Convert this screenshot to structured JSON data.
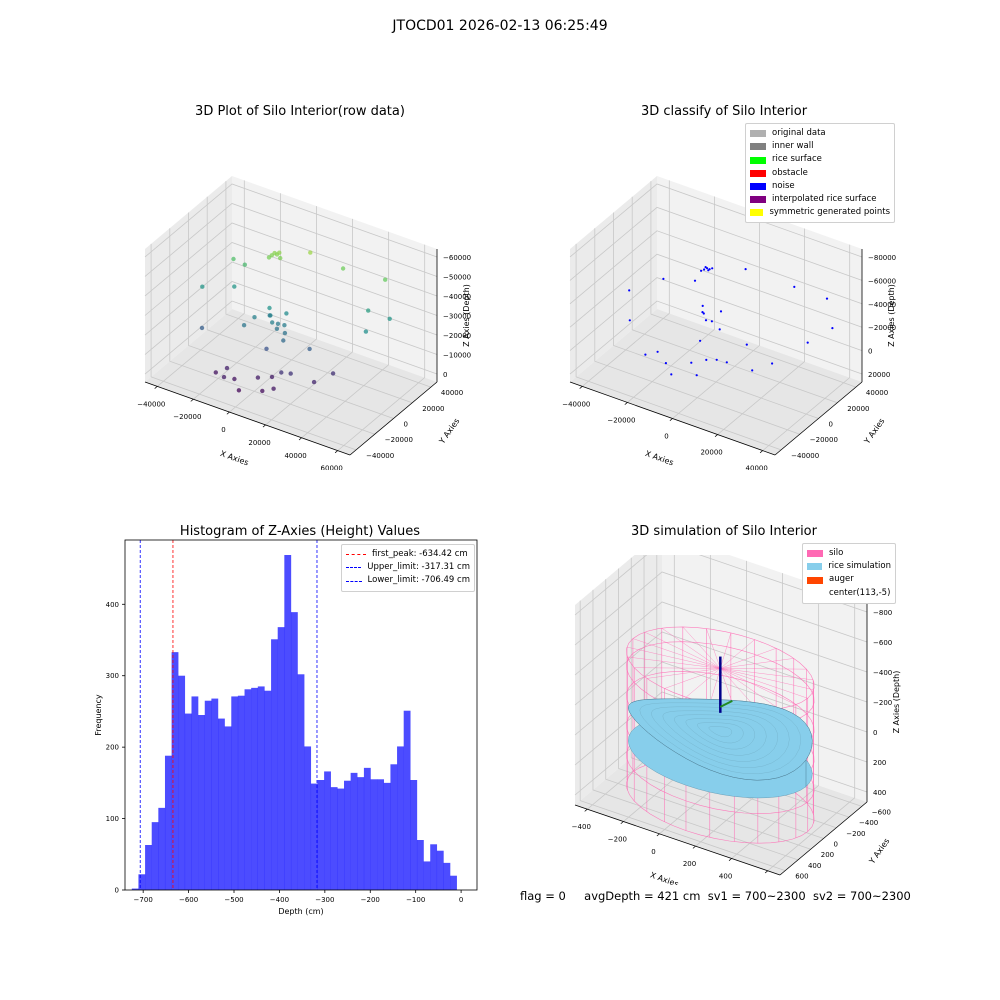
{
  "figure": {
    "title": "JTOCD01 2026-02-13 06:25:49"
  },
  "panels": {
    "raw": {
      "title": "3D Plot of Silo Interior(row data)"
    },
    "classify": {
      "title": "3D classify of Silo Interior"
    },
    "histogram": {
      "title": "Histogram of Z-Axies (Height) Values"
    },
    "simulation": {
      "title": "3D simulation of Silo Interior"
    }
  },
  "footer": {
    "flag": "flag = 0",
    "avg": "avgDepth = 421 cm",
    "sv1": "sv1 = 700~2300",
    "sv2": "sv2 = 700~2300"
  },
  "colors": {
    "bar": "#0000ff",
    "bar_alpha": 0.7,
    "first_peak": "#ff0000",
    "limits": "#0000ff",
    "silo": "#ff69b4",
    "rice": "#87ceeb",
    "auger": "#ff4500"
  },
  "chart_data": [
    {
      "type": "scatter3d",
      "title": "3D Plot of Silo Interior(row data)",
      "xlabel": "X Axies",
      "ylabel": "Y Axies",
      "zlabel": "Z Axies (Depth)",
      "xticks": [
        "−40000",
        "−20000",
        "0",
        "20000",
        "40000",
        "60000"
      ],
      "yticks": [
        "−40000",
        "−20000",
        "0",
        "20000",
        "40000"
      ],
      "zticks": [
        "0",
        "−10000",
        "−20000",
        "−30000",
        "−40000",
        "−50000",
        "−60000"
      ],
      "xlim": [
        -50000,
        60000
      ],
      "ylim": [
        -45000,
        45000
      ],
      "zlim": [
        -65000,
        2000
      ],
      "colormap": "viridis",
      "points": [
        {
          "x": -10000,
          "y": 12000,
          "z": -10000
        },
        {
          "x": -9000,
          "y": 12500,
          "z": -10500
        },
        {
          "x": -11000,
          "y": 11000,
          "z": -11000
        },
        {
          "x": -8000,
          "y": 13000,
          "z": -9500
        },
        {
          "x": -12000,
          "y": 10000,
          "z": -12000
        },
        {
          "x": -7000,
          "y": 12000,
          "z": -11500
        },
        {
          "x": 5000,
          "y": 20000,
          "z": -8000
        },
        {
          "x": 20000,
          "y": 25000,
          "z": -13000
        },
        {
          "x": 40000,
          "y": 30000,
          "z": -14000
        },
        {
          "x": -25000,
          "y": 10000,
          "z": -20000
        },
        {
          "x": -30000,
          "y": 8000,
          "z": -18000
        },
        {
          "x": -40000,
          "y": -5000,
          "z": -30000
        },
        {
          "x": 45000,
          "y": 25000,
          "z": -30000
        },
        {
          "x": 40000,
          "y": 10000,
          "z": -32000
        },
        {
          "x": 35000,
          "y": 22000,
          "z": -28000
        },
        {
          "x": -35000,
          "y": -15000,
          "z": -45000
        },
        {
          "x": -28000,
          "y": 5000,
          "z": -30000
        },
        {
          "x": -5000,
          "y": -2000,
          "z": -34000
        },
        {
          "x": -3000,
          "y": -4000,
          "z": -36000
        },
        {
          "x": -2000,
          "y": 0,
          "z": -38000
        },
        {
          "x": -1000,
          "y": -3000,
          "z": -39000
        },
        {
          "x": 2000,
          "y": -1000,
          "z": -37000
        },
        {
          "x": 3000,
          "y": -2500,
          "z": -40000
        },
        {
          "x": -8000,
          "y": 3000,
          "z": -37000
        },
        {
          "x": 1000,
          "y": 3000,
          "z": -33000
        },
        {
          "x": -15000,
          "y": -10000,
          "z": -39000
        },
        {
          "x": 4000,
          "y": -6000,
          "z": -42000
        },
        {
          "x": -4000,
          "y": -8000,
          "z": -48000
        },
        {
          "x": 6000,
          "y": -12000,
          "z": -55000
        },
        {
          "x": 0,
          "y": -10000,
          "z": -60000
        },
        {
          "x": -5000,
          "y": -15000,
          "z": -60000
        },
        {
          "x": -15000,
          "y": -20000,
          "z": -62000
        },
        {
          "x": -20000,
          "y": -18000,
          "z": -59000
        },
        {
          "x": -10000,
          "y": -25000,
          "z": -64000
        },
        {
          "x": 0,
          "y": -20000,
          "z": -63000
        },
        {
          "x": -18000,
          "y": -25000,
          "z": -60000
        },
        {
          "x": 10000,
          "y": -10000,
          "z": -55000
        },
        {
          "x": 20000,
          "y": -5000,
          "z": -58000
        },
        {
          "x": 25000,
          "y": 5000,
          "z": -56000
        },
        {
          "x": 5000,
          "y": -18000,
          "z": -61000
        },
        {
          "x": -25000,
          "y": -20000,
          "z": -62000
        },
        {
          "x": 15000,
          "y": 0,
          "z": -45000
        },
        {
          "x": -12000,
          "y": -5000,
          "z": -36000
        },
        {
          "x": -6000,
          "y": -1000,
          "z": -31000
        }
      ]
    },
    {
      "type": "scatter3d",
      "title": "3D classify of Silo Interior",
      "xlabel": "X Axies",
      "ylabel": "Y Axies",
      "zlabel": "Z Axies (Depth)",
      "xticks": [
        "−40000",
        "−20000",
        "0",
        "20000",
        "40000"
      ],
      "yticks": [
        "−40000",
        "−20000",
        "0",
        "20000",
        "40000"
      ],
      "zticks": [
        "20000",
        "0",
        "−20000",
        "−40000",
        "−60000",
        "−80000"
      ],
      "xlim": [
        -50000,
        50000
      ],
      "ylim": [
        -45000,
        45000
      ],
      "zlim": [
        -85000,
        25000
      ],
      "legend": [
        {
          "label": "original data",
          "color": "#b0b0b0"
        },
        {
          "label": "inner wall",
          "color": "#808080"
        },
        {
          "label": "rice surface",
          "color": "#00ff00"
        },
        {
          "label": "obstacle",
          "color": "#ff0000"
        },
        {
          "label": "noise",
          "color": "#0000ff"
        },
        {
          "label": "interpolated rice surface",
          "color": "#800080"
        },
        {
          "label": "symmetric generated points",
          "color": "#ffff00"
        }
      ],
      "legend_loc": "upper right",
      "points": [
        {
          "x": -10000,
          "y": 12000,
          "z": -5000
        },
        {
          "x": -9000,
          "y": 12500,
          "z": -5500
        },
        {
          "x": -11000,
          "y": 11000,
          "z": -6000
        },
        {
          "x": -8000,
          "y": 13000,
          "z": -4500
        },
        {
          "x": -12000,
          "y": 10000,
          "z": -7000
        },
        {
          "x": -10500,
          "y": 11500,
          "z": -4000
        },
        {
          "x": -9500,
          "y": 12200,
          "z": -6500
        },
        {
          "x": 5000,
          "y": 20000,
          "z": -2000
        },
        {
          "x": 25000,
          "y": 28000,
          "z": -10000
        },
        {
          "x": 40000,
          "y": 30000,
          "z": -12000
        },
        {
          "x": -40000,
          "y": -5000,
          "z": -30000
        },
        {
          "x": -35000,
          "y": -15000,
          "z": -45000
        },
        {
          "x": -28000,
          "y": 5000,
          "z": -20000
        },
        {
          "x": 45000,
          "y": 25000,
          "z": -30000
        },
        {
          "x": 40000,
          "y": 10000,
          "z": -35000
        },
        {
          "x": -5000,
          "y": -2000,
          "z": -30000
        },
        {
          "x": -3000,
          "y": -4000,
          "z": -33000
        },
        {
          "x": -2000,
          "y": 0,
          "z": -36000
        },
        {
          "x": 1000,
          "y": 3000,
          "z": -28000
        },
        {
          "x": 3000,
          "y": -2500,
          "z": -38000
        },
        {
          "x": -8000,
          "y": 3000,
          "z": -34000
        },
        {
          "x": -4000,
          "y": -8000,
          "z": -48000
        },
        {
          "x": 6000,
          "y": -12000,
          "z": -55000
        },
        {
          "x": 0,
          "y": -10000,
          "z": -60000
        },
        {
          "x": -5000,
          "y": -15000,
          "z": -62000
        },
        {
          "x": -15000,
          "y": -20000,
          "z": -65000
        },
        {
          "x": -20000,
          "y": -18000,
          "z": -60000
        },
        {
          "x": -10000,
          "y": -25000,
          "z": -68000
        },
        {
          "x": 0,
          "y": -20000,
          "z": -66000
        },
        {
          "x": 10000,
          "y": -10000,
          "z": -56000
        },
        {
          "x": 20000,
          "y": -5000,
          "z": -60000
        },
        {
          "x": 25000,
          "y": 5000,
          "z": -58000
        },
        {
          "x": -25000,
          "y": -20000,
          "z": -64000
        },
        {
          "x": 15000,
          "y": 0,
          "z": -45000
        },
        {
          "x": -6000,
          "y": -1000,
          "z": -25000
        },
        {
          "x": -14000,
          "y": 8000,
          "z": -15000
        }
      ]
    },
    {
      "type": "bar",
      "title": "Histogram of Z-Axies (Height) Values",
      "xlabel": "Depth (cm)",
      "ylabel": "Frequency",
      "xlim": [
        -740,
        35
      ],
      "ylim": [
        0,
        490
      ],
      "xticks": [
        -700,
        -600,
        -500,
        -400,
        -300,
        -200,
        -100,
        0
      ],
      "xtick_labels": [
        "−700",
        "−600",
        "−500",
        "−400",
        "−300",
        "−200",
        "−100",
        "0"
      ],
      "yticks": [
        0,
        100,
        200,
        300,
        400
      ],
      "bin_width": 14.6,
      "bin_start": -725,
      "values": [
        2,
        22,
        63,
        95,
        115,
        188,
        333,
        300,
        247,
        271,
        245,
        265,
        268,
        240,
        229,
        271,
        272,
        281,
        283,
        285,
        279,
        351,
        368,
        469,
        389,
        302,
        201,
        149,
        154,
        166,
        144,
        142,
        153,
        164,
        158,
        171,
        155,
        155,
        150,
        176,
        201,
        251,
        154,
        70,
        40,
        64,
        55,
        38,
        20
      ],
      "lines": [
        {
          "name": "first_peak",
          "label": "first_peak: -634.42 cm",
          "x": -634.42,
          "color": "#ff0000"
        },
        {
          "name": "upper_limit",
          "label": "Upper_limit: -317.31 cm",
          "x": -317.31,
          "color": "#0000ff"
        },
        {
          "name": "lower_limit",
          "label": "Lower_limit: -706.49 cm",
          "x": -706.49,
          "color": "#0000ff"
        }
      ],
      "legend_loc": "upper right"
    },
    {
      "type": "surface3d",
      "title": "3D simulation of Silo Interior",
      "xlabel": "X Axies",
      "ylabel": "Y Axies",
      "zlabel": "Z Axies (Depth)",
      "xticks": [
        "−400",
        "−200",
        "0",
        "200",
        "400",
        "600"
      ],
      "yticks": [
        "600",
        "400",
        "200",
        "0",
        "−200",
        "−400",
        "−600"
      ],
      "zticks": [
        "400",
        "200",
        "0",
        "−200",
        "−400",
        "−600",
        "−800"
      ],
      "xlim": [
        -500,
        750
      ],
      "ylim": [
        -700,
        650
      ],
      "zlim": [
        -900,
        450
      ],
      "legend": [
        {
          "label": "silo",
          "color": "#ff69b4"
        },
        {
          "label": "rice simulation",
          "color": "#87ceeb"
        },
        {
          "label": "auger",
          "color": "#ff4500"
        },
        {
          "label": "center(113,-5)",
          "color": null
        }
      ],
      "legend_loc": "upper right",
      "silo_radius": 650,
      "silo_center": [
        113,
        -5
      ],
      "silo_top": 0,
      "silo_bottom": -900,
      "rice_surface_level": -420
    }
  ]
}
